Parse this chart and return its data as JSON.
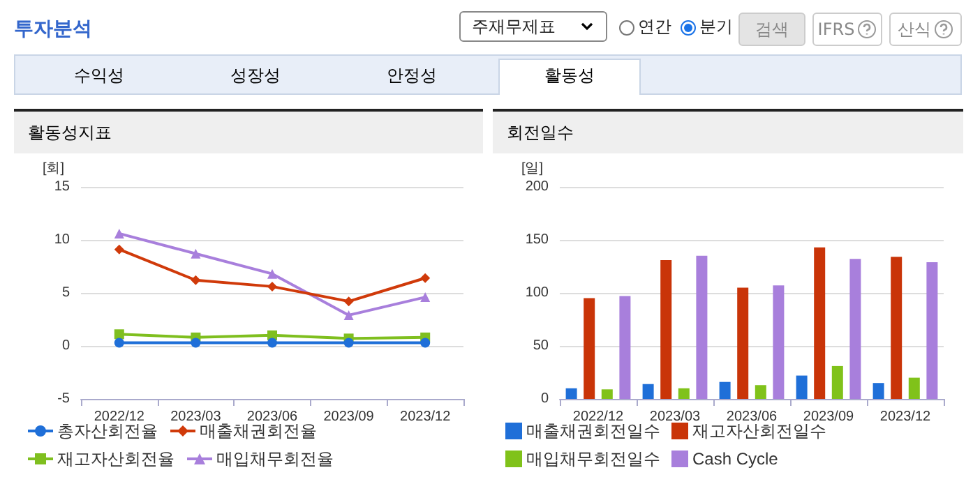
{
  "chart_data": [
    {
      "type": "line",
      "title": "활동성지표",
      "ylabel": "[회]",
      "annotations": [
        "투자분석",
        "주재무제표",
        "연간",
        "분기",
        "검색",
        "IFRS",
        "산식",
        "수익성",
        "성장성",
        "안정성",
        "활동성"
      ],
      "categories": [
        "2022/12",
        "2023/03",
        "2023/06",
        "2023/09",
        "2023/12"
      ],
      "series": [
        {
          "name": "총자산회전율",
          "color": "#1f6fd8",
          "marker": "circle",
          "values": [
            0.3,
            0.3,
            0.3,
            0.3,
            0.3
          ]
        },
        {
          "name": "매출채권회전율",
          "color": "#d03a0a",
          "marker": "diamond",
          "values": [
            9.1,
            6.2,
            5.6,
            4.2,
            6.4
          ]
        },
        {
          "name": "재고자산회전율",
          "color": "#7fbf1f",
          "marker": "square",
          "values": [
            1.1,
            0.8,
            1.0,
            0.7,
            0.8
          ]
        },
        {
          "name": "매입채무회전율",
          "color": "#a87fdc",
          "marker": "triangle",
          "values": [
            10.6,
            8.7,
            6.8,
            2.9,
            4.6
          ]
        }
      ],
      "ylim": [
        -5,
        15
      ],
      "yticks": [
        -5,
        0,
        5,
        10,
        15
      ],
      "grid": "y",
      "legend": "bottom"
    },
    {
      "type": "bar",
      "title": "회전일수",
      "ylabel": "[일]",
      "categories": [
        "2022/12",
        "2023/03",
        "2023/06",
        "2023/09",
        "2023/12"
      ],
      "series": [
        {
          "name": "매출채권회전일수",
          "color": "#1f6fd8",
          "values": [
            10,
            14,
            16,
            22,
            15
          ]
        },
        {
          "name": "재고자산회전일수",
          "color": "#c93408",
          "values": [
            95,
            131,
            105,
            143,
            134
          ]
        },
        {
          "name": "매입채무회전일수",
          "color": "#80c21a",
          "values": [
            9,
            10,
            13,
            31,
            20
          ]
        },
        {
          "name": "Cash Cycle",
          "color": "#a87fdc",
          "values": [
            97,
            135,
            107,
            132,
            129
          ]
        }
      ],
      "ylim": [
        0,
        200
      ],
      "yticks": [
        0,
        50,
        100,
        150,
        200
      ],
      "grid": "y",
      "legend": "bottom"
    }
  ]
}
